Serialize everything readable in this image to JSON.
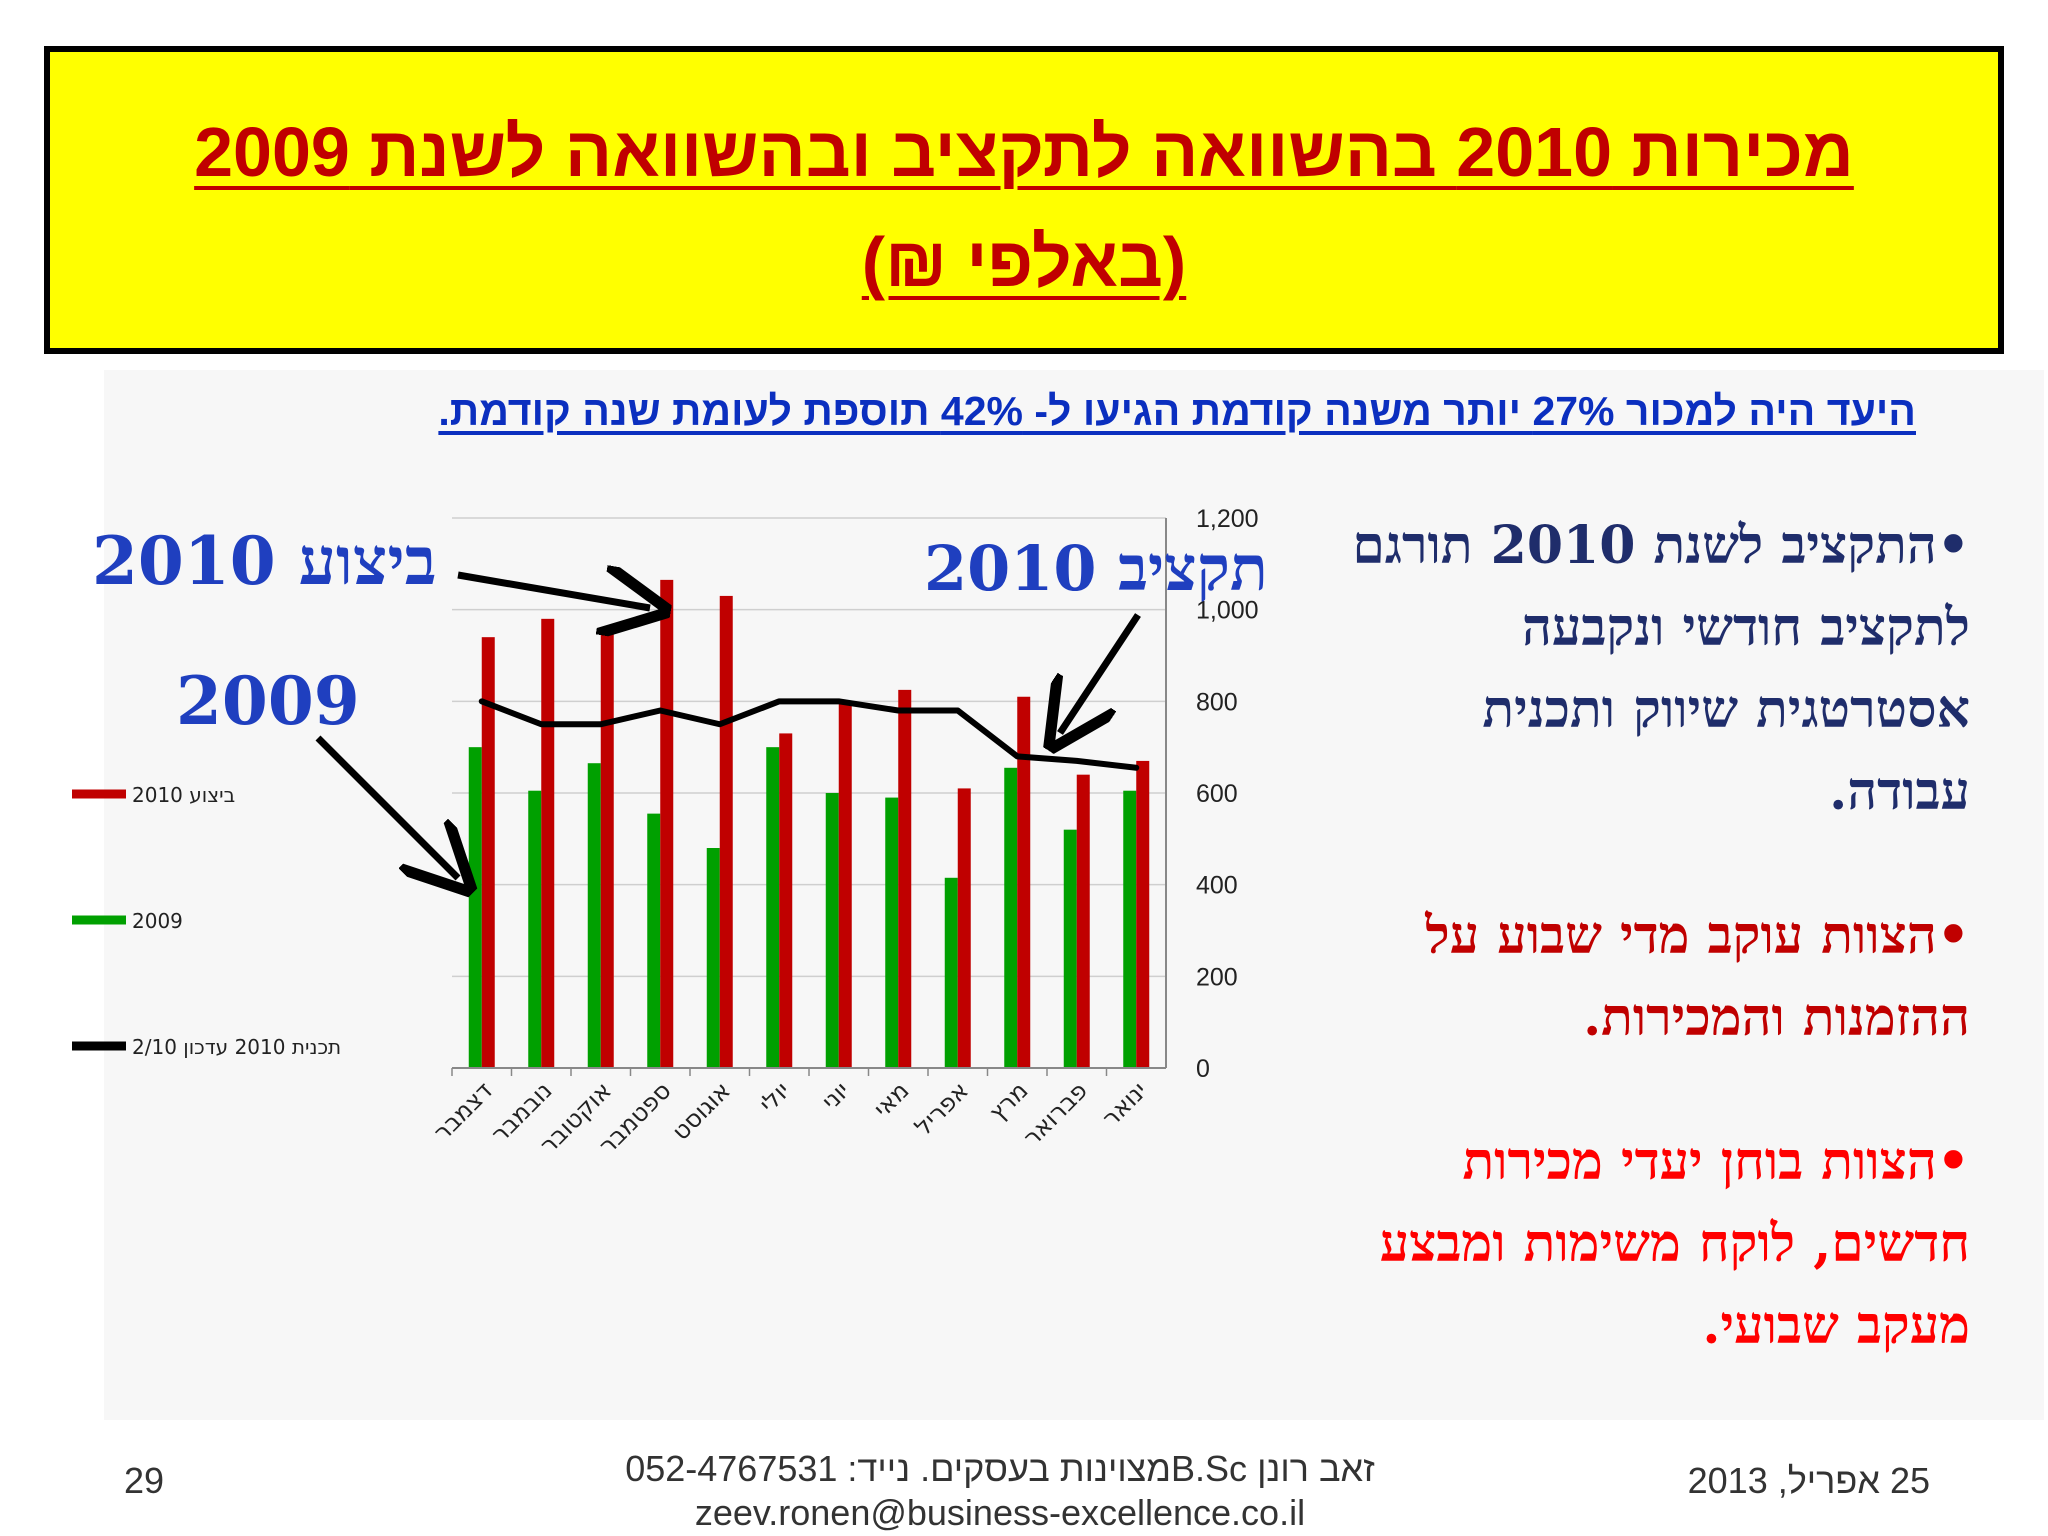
{
  "title": {
    "line1": "מכירות 2010 בהשוואה לתקציב ובהשוואה לשנת 2009",
    "line2": "(באלפי ₪)"
  },
  "subtitle": "היעד היה למכור 27% יותר משנה קודמת הגיעו ל- 42% תוספת לעומת שנה קודמת.",
  "bullets": [
    "•התקציב לשנת 2010 תורגם לתקציב חודשי ונקבעה אסטרטגית שיווק ותכנית עבודה.",
    "•הצוות עוקב מדי שבוע על ההזמנות והמכירות.",
    "•הצוות בוחן יעדי מכירות חדשים, לוקח משימות ומבצע מעקב שבועי."
  ],
  "annotations": {
    "actual_2010": "ביצוע 2010",
    "year_2009": "2009",
    "budget_2010": "תקציב 2010"
  },
  "footer": {
    "page": "29",
    "center_line1": "זאב רונן      B.Scמצוינות בעסקים.  נייד: 052-4767531",
    "center_line2": "zeev.ronen@business-excellence.co.il",
    "date": "25 אפריל, 2013"
  },
  "colors": {
    "actual": "#c00000",
    "prev": "#00a000",
    "plan": "#000000",
    "title_bg": "#ffff00"
  },
  "chart_data": {
    "type": "bar",
    "categories": [
      "דצמבר",
      "נובמבר",
      "אוקטובר",
      "ספטמבר",
      "אוגוסט",
      "יולי",
      "יוני",
      "מאי",
      "אפריל",
      "מרץ",
      "פברואר",
      "ינואר"
    ],
    "series": [
      {
        "name": "ביצוע 2010",
        "kind": "bar",
        "values": [
          940,
          980,
          960,
          1065,
          1030,
          730,
          800,
          825,
          610,
          810,
          640,
          670
        ]
      },
      {
        "name": "2009",
        "kind": "bar",
        "values": [
          700,
          605,
          665,
          555,
          480,
          700,
          600,
          590,
          415,
          655,
          520,
          605
        ]
      },
      {
        "name": "תכנית 2010 עדכון 2/10",
        "kind": "line",
        "values": [
          800,
          750,
          750,
          780,
          750,
          800,
          800,
          780,
          780,
          680,
          670,
          655
        ]
      }
    ],
    "y_ticks": [
      "0",
      "200",
      "400",
      "600",
      "800",
      "1,000",
      "1,200"
    ],
    "ylim": [
      0,
      1200
    ],
    "y_axis_side": "right",
    "legend_position": "left",
    "grid": true
  }
}
